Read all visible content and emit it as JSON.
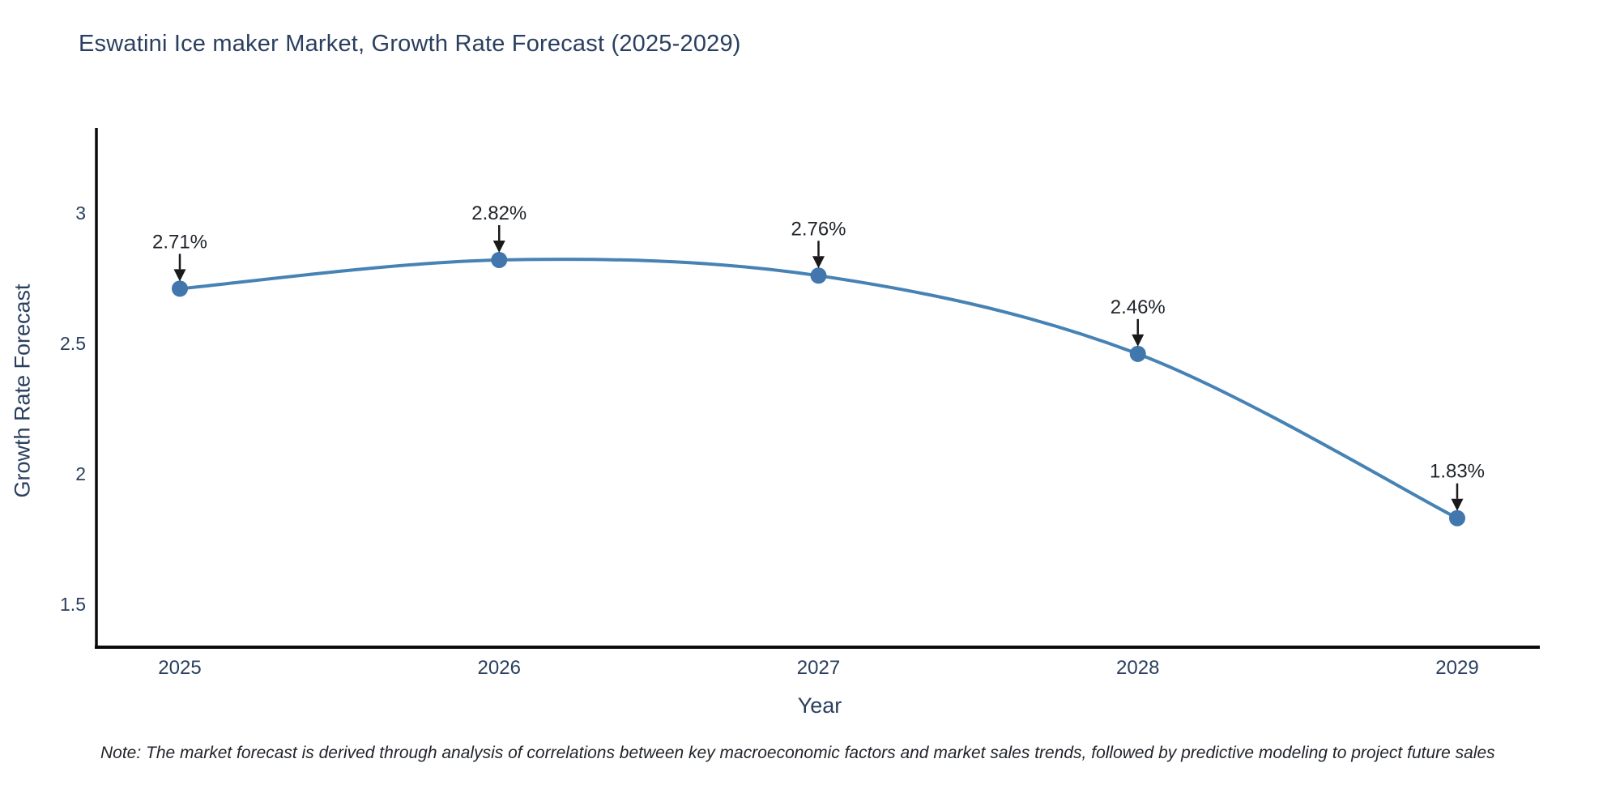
{
  "chart_data": {
    "type": "line",
    "title": "Eswatini Ice maker Market, Growth Rate Forecast (2025-2029)",
    "xlabel": "Year",
    "ylabel": "Growth Rate Forecast",
    "x": [
      "2025",
      "2026",
      "2027",
      "2028",
      "2029"
    ],
    "series": [
      {
        "name": "Growth Rate Forecast",
        "values": [
          2.71,
          2.82,
          2.76,
          2.46,
          1.83
        ]
      }
    ],
    "point_labels": [
      "2.71%",
      "2.82%",
      "2.76%",
      "2.46%",
      "1.83%"
    ],
    "y_ticks": [
      "3",
      "2.5",
      "2",
      "1.5"
    ],
    "y_tick_values": [
      3,
      2.5,
      2,
      1.5
    ],
    "ylim": [
      1.33,
      3.32
    ],
    "grid": false,
    "legend": false,
    "line_shape": "spline",
    "colors": {
      "line": "#4682b4",
      "marker": "#4177ad",
      "axis": "#0a0a0a",
      "tick_text": "#2a3f5f",
      "title_text": "#2a3f5f",
      "annotation_text": "#1f242b",
      "arrow": "#1a1a1a"
    }
  },
  "note": {
    "text": "Note: The market forecast is derived through analysis of correlations between key macroeconomic factors and market sales trends, followed by predictive modeling to project future sales"
  }
}
